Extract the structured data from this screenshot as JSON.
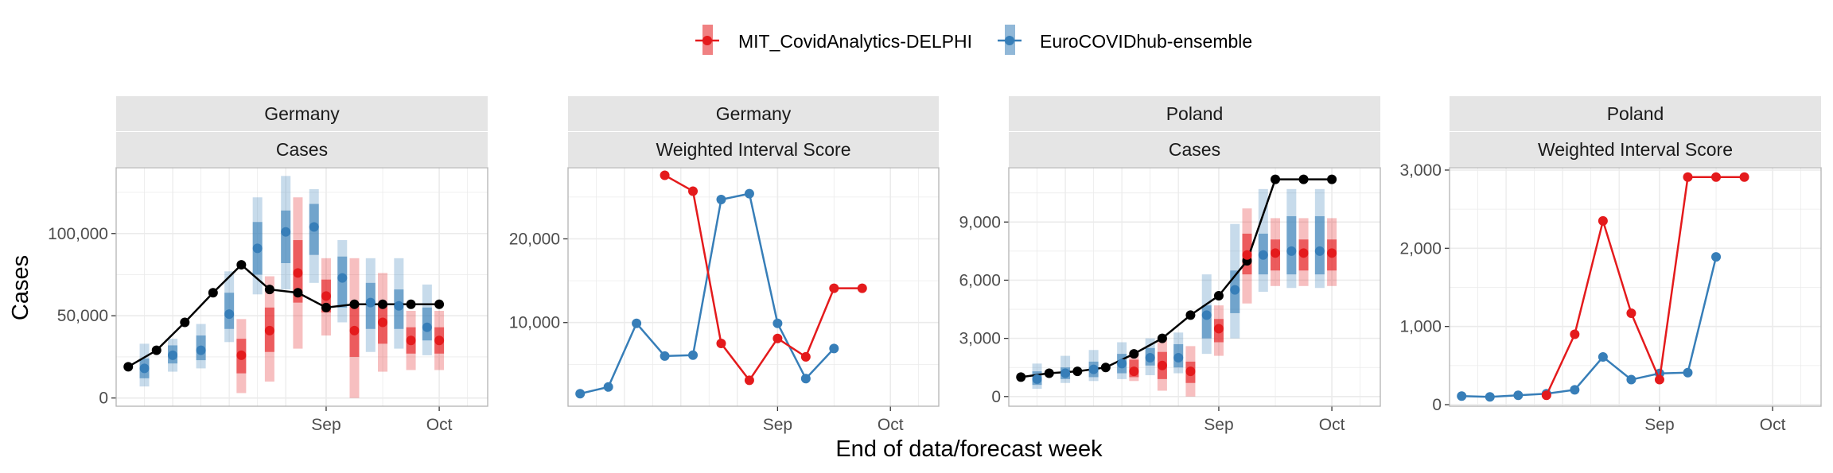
{
  "figure": {
    "xlabel": "End of data/forecast week",
    "ylabel": "Cases"
  },
  "legend": {
    "position": "top",
    "entries": [
      {
        "name": "MIT_CovidAnalytics-DELPHI",
        "color": "#e41a1c"
      },
      {
        "name": "EuroCOVIDhub-ensemble",
        "color": "#377eb8"
      }
    ]
  },
  "colors": {
    "observed": "#000000",
    "strip_bg": "#e5e5e5",
    "grid": "#ebebeb",
    "panel_border": "#b3b3b3"
  },
  "chart_data": [
    {
      "type": "line",
      "facet": [
        "Germany",
        "Cases"
      ],
      "x_ticks": [
        {
          "date": "2021-09-04",
          "label": "Sep"
        },
        {
          "date": "2021-10-02",
          "label": "Oct"
        }
      ],
      "xlim": [
        "2021-07-14",
        "2021-10-14"
      ],
      "ylim": [
        -5000,
        140000
      ],
      "y_ticks": [
        {
          "value": 0,
          "label": "0"
        },
        {
          "value": 50000,
          "label": "50,000"
        },
        {
          "value": 100000,
          "label": "100,000"
        }
      ],
      "observed": {
        "x": [
          "2021-07-17",
          "2021-07-24",
          "2021-07-31",
          "2021-08-07",
          "2021-08-14",
          "2021-08-21",
          "2021-08-28",
          "2021-09-04",
          "2021-09-11",
          "2021-09-18",
          "2021-09-25",
          "2021-10-02"
        ],
        "y": [
          19000,
          29000,
          46000,
          64000,
          81000,
          66000,
          64000,
          55000,
          57000,
          57000,
          57000,
          57000
        ]
      },
      "forecasts": [
        {
          "series": "EuroCOVIDhub-ensemble",
          "x": [
            "2021-07-21",
            "2021-07-28",
            "2021-08-04",
            "2021-08-11",
            "2021-08-18",
            "2021-08-25",
            "2021-09-01",
            "2021-09-08",
            "2021-09-15",
            "2021-09-22",
            "2021-09-29"
          ],
          "median": [
            18000,
            26000,
            29000,
            51000,
            91000,
            101000,
            104000,
            73000,
            58000,
            56000,
            43000
          ],
          "inner": [
            [
              12000,
              24000
            ],
            [
              21000,
              32000
            ],
            [
              23000,
              38000
            ],
            [
              42000,
              64000
            ],
            [
              75000,
              107000
            ],
            [
              82000,
              114000
            ],
            [
              87000,
              118000
            ],
            [
              55000,
              86000
            ],
            [
              42000,
              70000
            ],
            [
              42000,
              66000
            ],
            [
              35000,
              55000
            ]
          ],
          "outer": [
            [
              7000,
              33000
            ],
            [
              16000,
              36000
            ],
            [
              18000,
              45000
            ],
            [
              34000,
              77000
            ],
            [
              63000,
              122000
            ],
            [
              66000,
              135000
            ],
            [
              70000,
              127000
            ],
            [
              46000,
              96000
            ],
            [
              28000,
              85000
            ],
            [
              30000,
              85000
            ],
            [
              26000,
              69000
            ]
          ]
        },
        {
          "series": "MIT_CovidAnalytics-DELPHI",
          "x": [
            "2021-08-14",
            "2021-08-21",
            "2021-08-28",
            "2021-09-04",
            "2021-09-11",
            "2021-09-18",
            "2021-09-25",
            "2021-10-02"
          ],
          "median": [
            26000,
            41000,
            76000,
            62000,
            41000,
            46000,
            35000,
            35000
          ],
          "inner": [
            [
              15000,
              36000
            ],
            [
              28000,
              55000
            ],
            [
              58000,
              96000
            ],
            [
              52000,
              72000
            ],
            [
              25000,
              58000
            ],
            [
              33000,
              57000
            ],
            [
              27000,
              43000
            ],
            [
              27000,
              43000
            ]
          ],
          "outer": [
            [
              3000,
              48000
            ],
            [
              10000,
              74000
            ],
            [
              30000,
              122000
            ],
            [
              38000,
              85000
            ],
            [
              0,
              85000
            ],
            [
              16000,
              76000
            ],
            [
              17000,
              53000
            ],
            [
              17000,
              53000
            ]
          ]
        }
      ]
    },
    {
      "type": "line",
      "facet": [
        "Germany",
        "Weighted Interval Score"
      ],
      "x_ticks": [
        {
          "date": "2021-09-04",
          "label": "Sep"
        },
        {
          "date": "2021-10-02",
          "label": "Oct"
        }
      ],
      "xlim": [
        "2021-07-14",
        "2021-10-14"
      ],
      "ylim": [
        0,
        28500
      ],
      "y_ticks": [
        {
          "value": 10000,
          "label": "10,000"
        },
        {
          "value": 20000,
          "label": "20,000"
        }
      ],
      "series": [
        {
          "name": "EuroCOVIDhub-ensemble",
          "x": [
            "2021-07-17",
            "2021-07-24",
            "2021-07-31",
            "2021-08-07",
            "2021-08-14",
            "2021-08-21",
            "2021-08-28",
            "2021-09-04",
            "2021-09-11",
            "2021-09-18"
          ],
          "values": [
            1500,
            2300,
            9900,
            6000,
            6100,
            24700,
            25400,
            9900,
            3300,
            6900
          ]
        },
        {
          "name": "MIT_CovidAnalytics-DELPHI",
          "x": [
            "2021-08-07",
            "2021-08-14",
            "2021-08-21",
            "2021-08-28",
            "2021-09-04",
            "2021-09-11",
            "2021-09-18",
            "2021-09-25"
          ],
          "values": [
            27600,
            25700,
            7500,
            3100,
            8100,
            5900,
            14100,
            14100
          ]
        }
      ]
    },
    {
      "type": "line",
      "facet": [
        "Poland",
        "Cases"
      ],
      "x_ticks": [
        {
          "date": "2021-09-04",
          "label": "Sep"
        },
        {
          "date": "2021-10-02",
          "label": "Oct"
        }
      ],
      "xlim": [
        "2021-07-14",
        "2021-10-14"
      ],
      "ylim": [
        -500,
        11800
      ],
      "y_ticks": [
        {
          "value": 0,
          "label": "0"
        },
        {
          "value": 3000,
          "label": "3,000"
        },
        {
          "value": 6000,
          "label": "6,000"
        },
        {
          "value": 9000,
          "label": "9,000"
        }
      ],
      "observed": {
        "x": [
          "2021-07-17",
          "2021-07-24",
          "2021-07-31",
          "2021-08-07",
          "2021-08-14",
          "2021-08-21",
          "2021-08-28",
          "2021-09-04",
          "2021-09-11",
          "2021-09-18",
          "2021-09-25",
          "2021-10-02"
        ],
        "y": [
          1000,
          1200,
          1300,
          1500,
          2200,
          3000,
          4200,
          5200,
          7000,
          11200,
          11200,
          11200
        ]
      },
      "forecasts": [
        {
          "series": "EuroCOVIDhub-ensemble",
          "x": [
            "2021-07-21",
            "2021-07-28",
            "2021-08-04",
            "2021-08-11",
            "2021-08-18",
            "2021-08-25",
            "2021-09-01",
            "2021-09-08",
            "2021-09-15",
            "2021-09-22",
            "2021-09-29"
          ],
          "median": [
            900,
            1200,
            1400,
            1700,
            2000,
            2000,
            4200,
            5500,
            7300,
            7500,
            7500
          ],
          "inner": [
            [
              600,
              1300
            ],
            [
              900,
              1500
            ],
            [
              1000,
              1800
            ],
            [
              1200,
              2200
            ],
            [
              1600,
              2500
            ],
            [
              1500,
              2700
            ],
            [
              3000,
              4700
            ],
            [
              4300,
              6500
            ],
            [
              6300,
              8400
            ],
            [
              6300,
              9300
            ],
            [
              6300,
              9300
            ]
          ],
          "outer": [
            [
              400,
              1700
            ],
            [
              700,
              2100
            ],
            [
              800,
              2400
            ],
            [
              900,
              2800
            ],
            [
              1100,
              3000
            ],
            [
              1200,
              3300
            ],
            [
              2200,
              6300
            ],
            [
              3000,
              8900
            ],
            [
              5400,
              10700
            ],
            [
              5600,
              10700
            ],
            [
              5600,
              10700
            ]
          ]
        },
        {
          "series": "MIT_CovidAnalytics-DELPHI",
          "x": [
            "2021-08-14",
            "2021-08-21",
            "2021-08-28",
            "2021-09-04",
            "2021-09-11",
            "2021-09-18",
            "2021-09-25",
            "2021-10-02"
          ],
          "median": [
            1300,
            1600,
            1300,
            3500,
            7300,
            7400,
            7400,
            7400
          ],
          "inner": [
            [
              1000,
              1900
            ],
            [
              900,
              2300
            ],
            [
              700,
              1800
            ],
            [
              2800,
              4000
            ],
            [
              6300,
              8400
            ],
            [
              6500,
              8100
            ],
            [
              6500,
              8100
            ],
            [
              6500,
              8100
            ]
          ],
          "outer": [
            [
              800,
              2300
            ],
            [
              300,
              3000
            ],
            [
              0,
              2600
            ],
            [
              2100,
              4700
            ],
            [
              4800,
              9700
            ],
            [
              5700,
              9200
            ],
            [
              5700,
              9200
            ],
            [
              5700,
              9200
            ]
          ]
        }
      ]
    },
    {
      "type": "line",
      "facet": [
        "Poland",
        "Weighted Interval Score"
      ],
      "x_ticks": [
        {
          "date": "2021-09-04",
          "label": "Sep"
        },
        {
          "date": "2021-10-02",
          "label": "Oct"
        }
      ],
      "xlim": [
        "2021-07-14",
        "2021-10-14"
      ],
      "ylim": [
        -20,
        3030
      ],
      "y_ticks": [
        {
          "value": 0,
          "label": "0"
        },
        {
          "value": 1000,
          "label": "1,000"
        },
        {
          "value": 2000,
          "label": "2,000"
        },
        {
          "value": 3000,
          "label": "3,000"
        }
      ],
      "series": [
        {
          "name": "EuroCOVIDhub-ensemble",
          "x": [
            "2021-07-17",
            "2021-07-24",
            "2021-07-31",
            "2021-08-07",
            "2021-08-14",
            "2021-08-21",
            "2021-08-28",
            "2021-09-04",
            "2021-09-11",
            "2021-09-18"
          ],
          "values": [
            110,
            100,
            120,
            140,
            190,
            610,
            320,
            400,
            410,
            1890
          ]
        },
        {
          "name": "MIT_CovidAnalytics-DELPHI",
          "x": [
            "2021-08-07",
            "2021-08-14",
            "2021-08-21",
            "2021-08-28",
            "2021-09-04",
            "2021-09-11",
            "2021-09-18",
            "2021-09-25"
          ],
          "values": [
            120,
            900,
            2350,
            1170,
            320,
            2910,
            2910,
            2910
          ]
        }
      ]
    }
  ]
}
